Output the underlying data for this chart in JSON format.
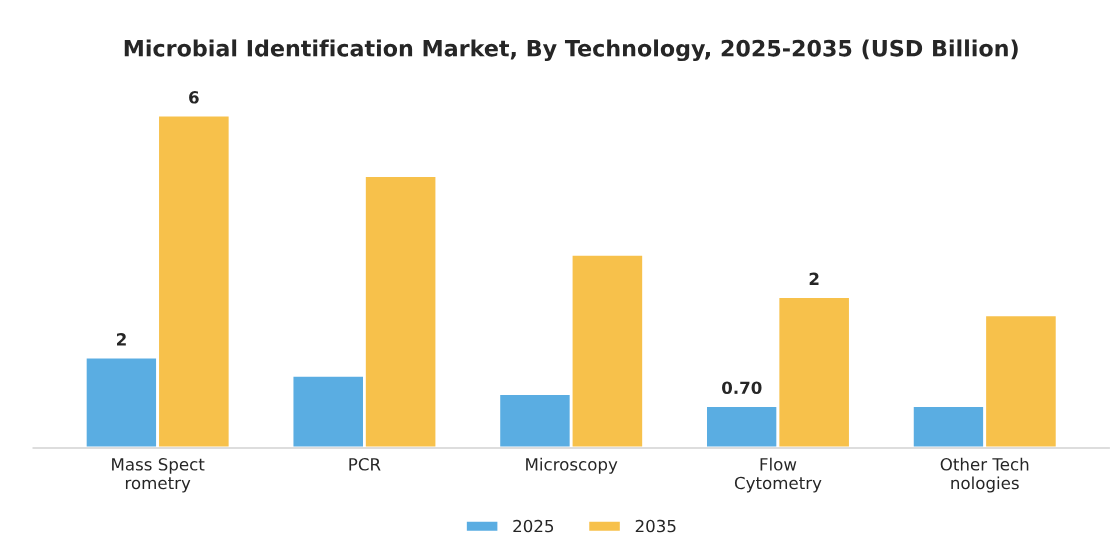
{
  "chart_data": {
    "type": "bar",
    "title": "Microbial Identification Market, By Technology, 2025-2035 (USD Billion)",
    "categories": [
      "Mass Spect\nrometry",
      "PCR",
      "Microscopy",
      "Flow\nCytometry",
      "Other Tech\nnologies"
    ],
    "series": [
      {
        "name": "2025",
        "color": "#5aade2",
        "values": [
          1.5,
          1.2,
          0.9,
          0.7,
          0.7
        ],
        "value_labels": [
          "2",
          null,
          null,
          "0.70",
          null
        ]
      },
      {
        "name": "2035",
        "color": "#f7c14b",
        "values": [
          5.5,
          4.5,
          3.2,
          2.5,
          2.2
        ],
        "value_labels": [
          "6",
          null,
          null,
          "2",
          null
        ]
      }
    ],
    "legend": "bottom",
    "grid": false
  }
}
